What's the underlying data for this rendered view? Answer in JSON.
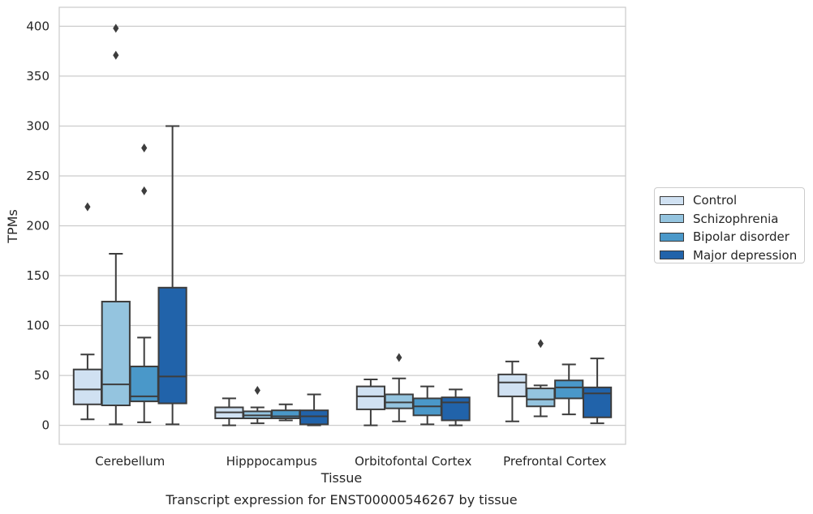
{
  "chart_data": {
    "type": "box",
    "caption": "Transcript expression for ENST00000546267 by tissue",
    "xlabel": "Tissue",
    "ylabel": "TPMs",
    "ylim": [
      -19,
      419
    ],
    "yticks": [
      0,
      50,
      100,
      150,
      200,
      250,
      300,
      350,
      400
    ],
    "grid": true,
    "legend_position": "right",
    "categories": [
      "Cerebellum",
      "Hipppocampus",
      "Orbitofontal Cortex",
      "Prefrontal Cortex"
    ],
    "series": [
      {
        "name": "Control",
        "color": "#d0e1f2",
        "boxes": [
          {
            "whislo": 6,
            "q1": 21,
            "med": 36,
            "q3": 56,
            "whishi": 71,
            "fliers": [
              219
            ]
          },
          {
            "whislo": 0,
            "q1": 7,
            "med": 13,
            "q3": 18,
            "whishi": 27,
            "fliers": []
          },
          {
            "whislo": 0,
            "q1": 16,
            "med": 29,
            "q3": 39,
            "whishi": 46,
            "fliers": []
          },
          {
            "whislo": 4,
            "q1": 29,
            "med": 43,
            "q3": 51,
            "whishi": 64,
            "fliers": []
          }
        ]
      },
      {
        "name": "Schizophrenia",
        "color": "#94c4df",
        "boxes": [
          {
            "whislo": 1,
            "q1": 20,
            "med": 41,
            "q3": 124,
            "whishi": 172,
            "fliers": [
              371,
              398
            ]
          },
          {
            "whislo": 2,
            "q1": 7,
            "med": 10,
            "q3": 14,
            "whishi": 18,
            "fliers": [
              35
            ]
          },
          {
            "whislo": 4,
            "q1": 17,
            "med": 23,
            "q3": 31,
            "whishi": 47,
            "fliers": [
              68
            ]
          },
          {
            "whislo": 9,
            "q1": 19,
            "med": 26,
            "q3": 37,
            "whishi": 40,
            "fliers": [
              82
            ]
          }
        ]
      },
      {
        "name": "Bipolar disorder",
        "color": "#4a98c9",
        "boxes": [
          {
            "whislo": 3,
            "q1": 24,
            "med": 29,
            "q3": 59,
            "whishi": 88,
            "fliers": [
              235,
              278
            ]
          },
          {
            "whislo": 5,
            "q1": 7,
            "med": 9,
            "q3": 15,
            "whishi": 21,
            "fliers": []
          },
          {
            "whislo": 1,
            "q1": 10,
            "med": 19,
            "q3": 27,
            "whishi": 39,
            "fliers": []
          },
          {
            "whislo": 11,
            "q1": 27,
            "med": 38,
            "q3": 45,
            "whishi": 61,
            "fliers": []
          }
        ]
      },
      {
        "name": "Major depression",
        "color": "#2163aa",
        "boxes": [
          {
            "whislo": 1,
            "q1": 22,
            "med": 49,
            "q3": 138,
            "whishi": 300,
            "fliers": []
          },
          {
            "whislo": 0,
            "q1": 1,
            "med": 9,
            "q3": 15,
            "whishi": 31,
            "fliers": []
          },
          {
            "whislo": 0,
            "q1": 5,
            "med": 23,
            "q3": 28,
            "whishi": 36,
            "fliers": []
          },
          {
            "whislo": 2,
            "q1": 8,
            "med": 32,
            "q3": 38,
            "whishi": 67,
            "fliers": []
          }
        ]
      }
    ]
  }
}
